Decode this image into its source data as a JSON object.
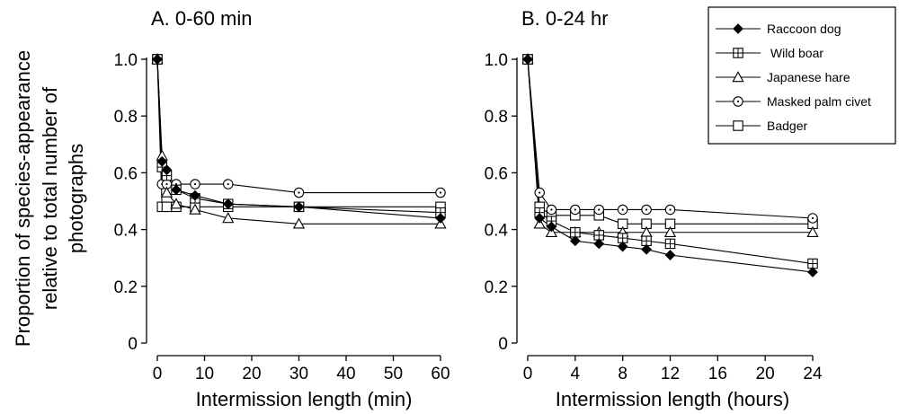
{
  "chart_data": [
    {
      "type": "line",
      "title": "A. 0-60 min",
      "xlabel": "Intermission length (min)",
      "ylabel": "Proportion of species-appearance relative to total number of photographs",
      "xlim": [
        0,
        60
      ],
      "ylim": [
        0,
        1.0
      ],
      "xticks": [
        0,
        10,
        20,
        30,
        40,
        50,
        60
      ],
      "yticks": [
        "0",
        "0.2",
        "0.4",
        "0.6",
        "0.8",
        "1.0"
      ],
      "grid": false,
      "series": [
        {
          "name": "Raccoon dog",
          "marker": "diamond-filled",
          "points": [
            [
              0,
              1.0
            ],
            [
              1,
              0.64
            ],
            [
              2,
              0.61
            ],
            [
              4,
              0.54
            ],
            [
              8,
              0.52
            ],
            [
              15,
              0.49
            ],
            [
              30,
              0.48
            ],
            [
              60,
              0.44
            ]
          ]
        },
        {
          "name": "Wild boar",
          "marker": "square-plus",
          "points": [
            [
              0,
              1.0
            ],
            [
              1,
              0.62
            ],
            [
              2,
              0.59
            ],
            [
              4,
              0.54
            ],
            [
              8,
              0.51
            ],
            [
              15,
              0.49
            ],
            [
              30,
              0.48
            ],
            [
              60,
              0.46
            ]
          ]
        },
        {
          "name": "Japanese hare",
          "marker": "triangle",
          "points": [
            [
              0,
              1.0
            ],
            [
              1,
              0.66
            ],
            [
              2,
              0.53
            ],
            [
              4,
              0.49
            ],
            [
              8,
              0.47
            ],
            [
              15,
              0.44
            ],
            [
              30,
              0.42
            ],
            [
              60,
              0.42
            ]
          ]
        },
        {
          "name": "Masked palm civet",
          "marker": "circle",
          "points": [
            [
              0,
              1.0
            ],
            [
              1,
              0.56
            ],
            [
              2,
              0.56
            ],
            [
              4,
              0.56
            ],
            [
              8,
              0.56
            ],
            [
              15,
              0.56
            ],
            [
              30,
              0.53
            ],
            [
              60,
              0.53
            ]
          ]
        },
        {
          "name": "Badger",
          "marker": "square",
          "points": [
            [
              0,
              1.0
            ],
            [
              1,
              0.48
            ],
            [
              2,
              0.48
            ],
            [
              4,
              0.48
            ],
            [
              8,
              0.48
            ],
            [
              15,
              0.48
            ],
            [
              30,
              0.48
            ],
            [
              60,
              0.48
            ]
          ]
        }
      ]
    },
    {
      "type": "line",
      "title": "B. 0-24 hr",
      "xlabel": "Intermission length (hours)",
      "ylabel": "",
      "xlim": [
        0,
        24
      ],
      "ylim": [
        0,
        1.0
      ],
      "xticks": [
        0,
        4,
        8,
        12,
        16,
        20,
        24
      ],
      "yticks": [
        "0",
        "0.2",
        "0.4",
        "0.6",
        "0.8",
        "1.0"
      ],
      "grid": false,
      "series": [
        {
          "name": "Raccoon dog",
          "marker": "diamond-filled",
          "points": [
            [
              0,
              1.0
            ],
            [
              1,
              0.44
            ],
            [
              2,
              0.41
            ],
            [
              4,
              0.36
            ],
            [
              6,
              0.35
            ],
            [
              8,
              0.34
            ],
            [
              10,
              0.33
            ],
            [
              12,
              0.31
            ],
            [
              24,
              0.25
            ]
          ]
        },
        {
          "name": "Wild boar",
          "marker": "square-plus",
          "points": [
            [
              0,
              1.0
            ],
            [
              1,
              0.46
            ],
            [
              2,
              0.43
            ],
            [
              4,
              0.39
            ],
            [
              6,
              0.38
            ],
            [
              8,
              0.37
            ],
            [
              10,
              0.36
            ],
            [
              12,
              0.35
            ],
            [
              24,
              0.28
            ]
          ]
        },
        {
          "name": "Japanese hare",
          "marker": "triangle",
          "points": [
            [
              0,
              1.0
            ],
            [
              1,
              0.42
            ],
            [
              2,
              0.39
            ],
            [
              4,
              0.39
            ],
            [
              6,
              0.39
            ],
            [
              8,
              0.39
            ],
            [
              10,
              0.39
            ],
            [
              12,
              0.39
            ],
            [
              24,
              0.39
            ]
          ]
        },
        {
          "name": "Masked palm civet",
          "marker": "circle",
          "points": [
            [
              0,
              1.0
            ],
            [
              1,
              0.53
            ],
            [
              2,
              0.47
            ],
            [
              4,
              0.47
            ],
            [
              6,
              0.47
            ],
            [
              8,
              0.47
            ],
            [
              10,
              0.47
            ],
            [
              12,
              0.47
            ],
            [
              24,
              0.44
            ]
          ]
        },
        {
          "name": "Badger",
          "marker": "square",
          "points": [
            [
              0,
              1.0
            ],
            [
              1,
              0.48
            ],
            [
              2,
              0.45
            ],
            [
              4,
              0.45
            ],
            [
              6,
              0.45
            ],
            [
              8,
              0.42
            ],
            [
              10,
              0.42
            ],
            [
              12,
              0.42
            ],
            [
              24,
              0.42
            ]
          ]
        }
      ]
    }
  ],
  "legend": {
    "placement": "top-right",
    "entries": [
      "Raccoon dog",
      " Wild boar",
      "Japanese hare",
      "Masked palm civet",
      "Badger"
    ]
  }
}
